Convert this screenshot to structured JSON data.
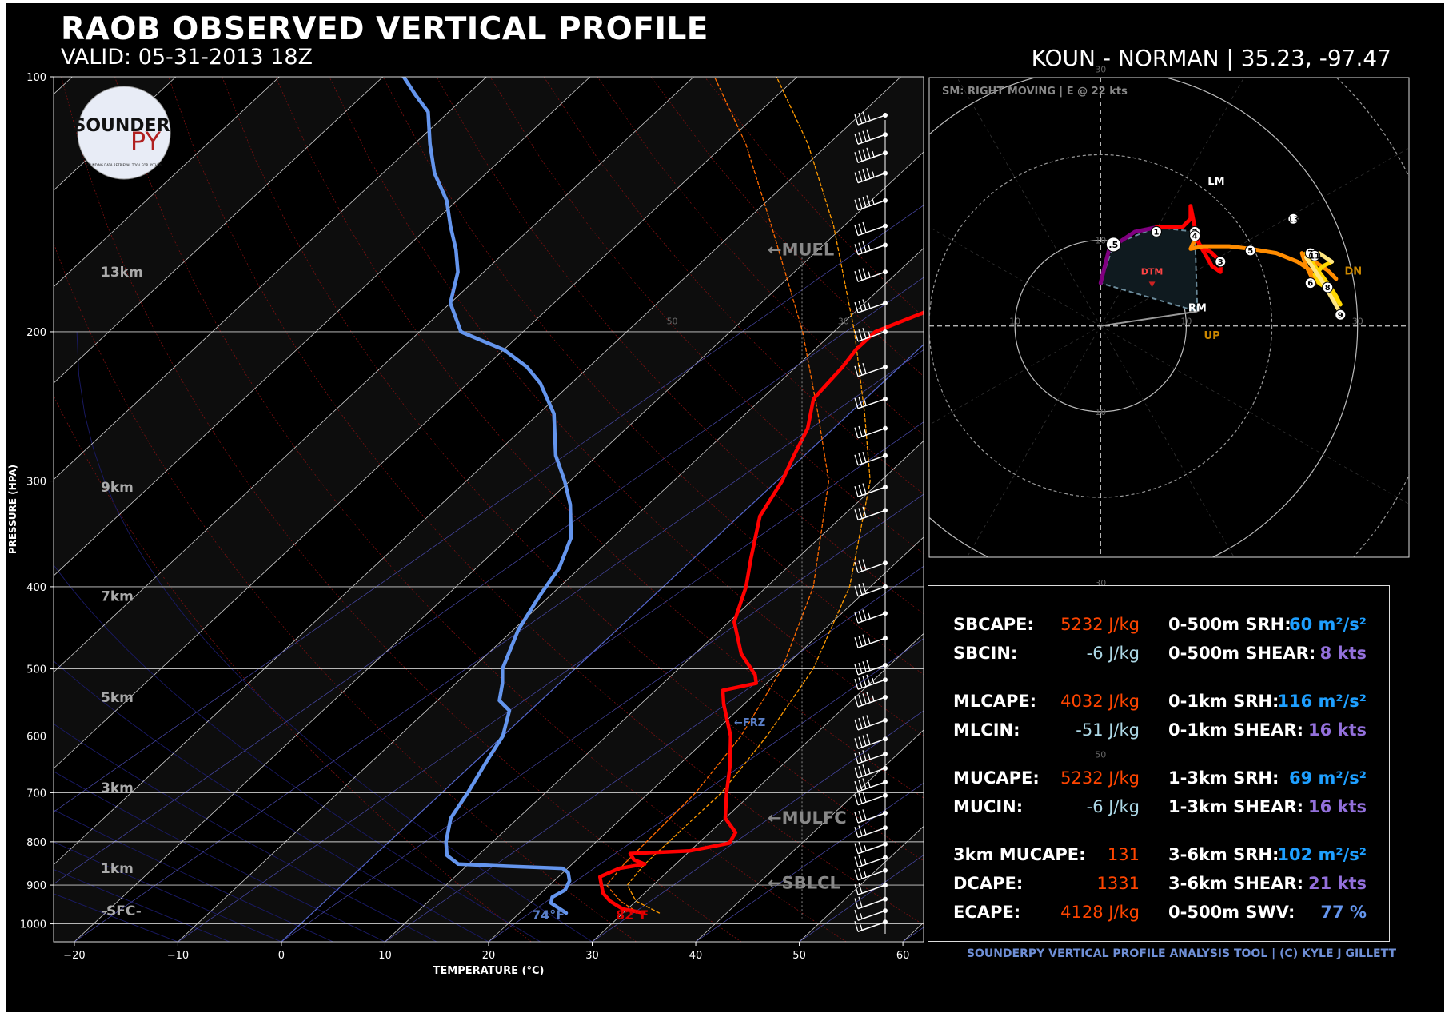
{
  "header": {
    "title": "RAOB OBSERVED VERTICAL PROFILE",
    "valid": "VALID: 05-31-2013 18Z",
    "station": "KOUN - NORMAN | 35.23, -97.47"
  },
  "footer": "SOUNDERPY VERTICAL PROFILE ANALYSIS TOOL | (C) KYLE J GILLETT",
  "logo": {
    "line1": "SOUNDER",
    "line2": "PY",
    "tagline": "SOUNDING DATA RETRIEVAL TOOL FOR PYTHON"
  },
  "colors": {
    "temperature": "#ff0000",
    "dewpoint": "#6495ed",
    "parcel": "#ff8c00",
    "background": "#000000"
  },
  "chart_data": [
    {
      "type": "line",
      "name": "skew-t",
      "xlabel": "TEMPERATURE (°C)",
      "ylabel": "PRESSURE (HPA)",
      "x_ticks": [
        -20,
        -10,
        0,
        10,
        20,
        30,
        40,
        50,
        60
      ],
      "y_ticks": [
        100,
        200,
        300,
        400,
        500,
        600,
        700,
        800,
        900,
        1000
      ],
      "xlim": [
        -22,
        62
      ],
      "ylim": [
        1050,
        100
      ],
      "y_scale": "log",
      "height_labels": [
        {
          "text": "13km",
          "p": 170
        },
        {
          "text": "9km",
          "p": 305
        },
        {
          "text": "7km",
          "p": 410
        },
        {
          "text": "5km",
          "p": 540
        },
        {
          "text": "3km",
          "p": 690
        },
        {
          "text": "1km",
          "p": 860
        },
        {
          "text": "-SFC-",
          "p": 965
        }
      ],
      "annotations": [
        {
          "text": "←MUEL",
          "p": 160
        },
        {
          "text": "←FRZ",
          "p": 575
        },
        {
          "text": "←MULFC",
          "p": 750
        },
        {
          "text": "←SBLCL",
          "p": 895
        }
      ],
      "surface_labels": {
        "dewpoint": "74°F",
        "temperature": "82°F"
      },
      "temperature": [
        [
          971,
          32.0
        ],
        [
          960,
          29.5
        ],
        [
          940,
          27.5
        ],
        [
          920,
          26.0
        ],
        [
          900,
          25.0
        ],
        [
          880,
          24.0
        ],
        [
          860,
          25.0
        ],
        [
          850,
          27.0
        ],
        [
          840,
          25.5
        ],
        [
          826,
          24.5
        ],
        [
          820,
          30.0
        ],
        [
          803,
          33.0
        ],
        [
          780,
          32.5
        ],
        [
          750,
          30.0
        ],
        [
          700,
          27.5
        ],
        [
          650,
          25.0
        ],
        [
          600,
          22.0
        ],
        [
          550,
          18.0
        ],
        [
          530,
          16.5
        ],
        [
          520,
          19.0
        ],
        [
          508,
          18.0
        ],
        [
          480,
          14.5
        ],
        [
          440,
          10.5
        ],
        [
          400,
          8.0
        ],
        [
          370,
          5.5
        ],
        [
          330,
          2.0
        ],
        [
          300,
          0.5
        ],
        [
          280,
          -1.0
        ],
        [
          260,
          -2.5
        ],
        [
          240,
          -5.0
        ],
        [
          220,
          -5.5
        ],
        [
          210,
          -6.0
        ],
        [
          200,
          -6.0
        ],
        [
          185,
          -2.0
        ],
        [
          170,
          2.0
        ],
        [
          160,
          3.5
        ],
        [
          152,
          4.5
        ],
        [
          145,
          5.0
        ],
        [
          140,
          8.0
        ],
        [
          132,
          9.5
        ],
        [
          124,
          12.0
        ],
        [
          115,
          14.5
        ],
        [
          107,
          16.5
        ],
        [
          100,
          18.5
        ],
        [
          96,
          20.5
        ]
      ],
      "dewpoint": [
        [
          971,
          24.5
        ],
        [
          945,
          22.0
        ],
        [
          930,
          21.5
        ],
        [
          912,
          22.0
        ],
        [
          890,
          21.5
        ],
        [
          870,
          20.5
        ],
        [
          860,
          19.5
        ],
        [
          855,
          14.0
        ],
        [
          850,
          9.0
        ],
        [
          830,
          7.0
        ],
        [
          800,
          5.5
        ],
        [
          750,
          3.5
        ],
        [
          700,
          2.5
        ],
        [
          640,
          1.0
        ],
        [
          600,
          0.0
        ],
        [
          560,
          -2.0
        ],
        [
          545,
          -4.0
        ],
        [
          520,
          -5.5
        ],
        [
          500,
          -7.0
        ],
        [
          450,
          -9.5
        ],
        [
          410,
          -11.0
        ],
        [
          380,
          -12.0
        ],
        [
          350,
          -14.0
        ],
        [
          320,
          -17.5
        ],
        [
          300,
          -20.5
        ],
        [
          280,
          -24.0
        ],
        [
          250,
          -28.5
        ],
        [
          230,
          -33.0
        ],
        [
          220,
          -36.0
        ],
        [
          210,
          -40.0
        ],
        [
          200,
          -46.0
        ],
        [
          185,
          -50.0
        ],
        [
          170,
          -52.5
        ],
        [
          160,
          -55.0
        ],
        [
          150,
          -58.0
        ],
        [
          140,
          -61.0
        ],
        [
          130,
          -65.0
        ],
        [
          120,
          -68.5
        ],
        [
          110,
          -72.0
        ],
        [
          105,
          -75.0
        ],
        [
          100,
          -78.0
        ],
        [
          97,
          -80.0
        ]
      ],
      "parcel_sb": [
        [
          971,
          33.5
        ],
        [
          940,
          30.0
        ],
        [
          900,
          27.5
        ],
        [
          850,
          27.0
        ],
        [
          700,
          27.0
        ],
        [
          600,
          25.5
        ],
        [
          500,
          23.0
        ],
        [
          400,
          18.0
        ],
        [
          300,
          9.0
        ],
        [
          250,
          1.5
        ],
        [
          200,
          -8.0
        ],
        [
          150,
          -21.0
        ],
        [
          120,
          -32.0
        ],
        [
          100,
          -42.0
        ]
      ],
      "parcel_ml": [
        [
          971,
          31.5
        ],
        [
          940,
          28.5
        ],
        [
          900,
          25.5
        ],
        [
          850,
          25.0
        ],
        [
          700,
          24.5
        ],
        [
          600,
          23.0
        ],
        [
          500,
          20.0
        ],
        [
          400,
          14.5
        ],
        [
          300,
          5.0
        ],
        [
          250,
          -3.0
        ],
        [
          200,
          -13.0
        ],
        [
          150,
          -27.0
        ],
        [
          120,
          -38.0
        ],
        [
          100,
          -48.0
        ]
      ],
      "wind_barbs": [
        {
          "p": 995,
          "spd": 15
        },
        {
          "p": 965,
          "spd": 15
        },
        {
          "p": 935,
          "spd": 20
        },
        {
          "p": 900,
          "spd": 20
        },
        {
          "p": 865,
          "spd": 25
        },
        {
          "p": 835,
          "spd": 25
        },
        {
          "p": 805,
          "spd": 25
        },
        {
          "p": 770,
          "spd": 25
        },
        {
          "p": 740,
          "spd": 30
        },
        {
          "p": 705,
          "spd": 30
        },
        {
          "p": 680,
          "spd": 35
        },
        {
          "p": 655,
          "spd": 35
        },
        {
          "p": 630,
          "spd": 35
        },
        {
          "p": 605,
          "spd": 40
        },
        {
          "p": 575,
          "spd": 40
        },
        {
          "p": 540,
          "spd": 45
        },
        {
          "p": 515,
          "spd": 45
        },
        {
          "p": 495,
          "spd": 40
        },
        {
          "p": 460,
          "spd": 35
        },
        {
          "p": 430,
          "spd": 35
        },
        {
          "p": 400,
          "spd": 30
        },
        {
          "p": 375,
          "spd": 30
        },
        {
          "p": 325,
          "spd": 30
        },
        {
          "p": 305,
          "spd": 30
        },
        {
          "p": 280,
          "spd": 30
        },
        {
          "p": 260,
          "spd": 25
        },
        {
          "p": 240,
          "spd": 25
        },
        {
          "p": 220,
          "spd": 30
        },
        {
          "p": 200,
          "spd": 35
        },
        {
          "p": 185,
          "spd": 35
        },
        {
          "p": 170,
          "spd": 35
        },
        {
          "p": 158,
          "spd": 35
        },
        {
          "p": 150,
          "spd": 30
        },
        {
          "p": 140,
          "spd": 45
        },
        {
          "p": 130,
          "spd": 45
        },
        {
          "p": 123,
          "spd": 45
        },
        {
          "p": 117,
          "spd": 40
        },
        {
          "p": 111,
          "spd": 35
        }
      ]
    },
    {
      "type": "line",
      "name": "hodograph",
      "label": "SM: RIGHT MOVING | E @ 22 kts",
      "ring_labels": [
        "10",
        "30",
        "50"
      ],
      "ring_values": [
        10,
        20,
        30,
        40,
        50
      ],
      "xlim": [
        -20,
        36
      ],
      "ylim": [
        -27,
        29
      ],
      "points": [
        {
          "label": ".5",
          "u": 1.5,
          "v": 9.5
        },
        {
          "label": "1",
          "u": 6.5,
          "v": 11.0
        },
        {
          "label": "2",
          "u": 11.0,
          "v": 11.0
        },
        {
          "label": "3",
          "u": 14.0,
          "v": 7.5
        },
        {
          "label": "4",
          "u": 11.0,
          "v": 10.5
        },
        {
          "label": "5",
          "u": 17.5,
          "v": 8.8
        },
        {
          "label": "6",
          "u": 24.5,
          "v": 5.0
        },
        {
          "label": "7",
          "u": 24.5,
          "v": 8.5
        },
        {
          "label": "8",
          "u": 26.5,
          "v": 4.5
        },
        {
          "label": "9",
          "u": 28.0,
          "v": 1.3
        },
        {
          "label": "11",
          "u": 25.0,
          "v": 8.2
        },
        {
          "label": "13",
          "u": 22.5,
          "v": 12.5
        }
      ],
      "segments": [
        {
          "color": "#800080",
          "uv": [
            [
              0,
              5
            ],
            [
              0.5,
              7
            ],
            [
              1,
              9
            ],
            [
              2.5,
              10
            ],
            [
              4,
              11
            ],
            [
              6.5,
              11.5
            ]
          ]
        },
        {
          "color": "#ff0000",
          "uv": [
            [
              6.5,
              11.5
            ],
            [
              9.5,
              11.5
            ],
            [
              10.5,
              12.5
            ],
            [
              10.5,
              14.0
            ],
            [
              11.0,
              11.5
            ],
            [
              11.5,
              9.5
            ],
            [
              13.0,
              8.5
            ],
            [
              14.0,
              7.5
            ],
            [
              14.0,
              6.3
            ],
            [
              13.0,
              7.0
            ],
            [
              11.0,
              10.5
            ],
            [
              10.7,
              11.2
            ],
            [
              11.2,
              10.5
            ]
          ]
        },
        {
          "color": "#ff8c00",
          "uv": [
            [
              11.2,
              10.5
            ],
            [
              10.5,
              9.0
            ],
            [
              12.0,
              9.3
            ],
            [
              15.0,
              9.3
            ],
            [
              17.5,
              9.0
            ],
            [
              20.5,
              8.5
            ],
            [
              23.0,
              7.5
            ],
            [
              24.5,
              6.5
            ],
            [
              25.0,
              5.0
            ],
            [
              24.0,
              7.0
            ],
            [
              23.5,
              8.5
            ],
            [
              25.0,
              7.5
            ],
            [
              26.5,
              6.5
            ],
            [
              27.5,
              5.5
            ]
          ]
        },
        {
          "color": "#ffd700",
          "uv": [
            [
              24.0,
              8.5
            ],
            [
              25.0,
              7.0
            ],
            [
              26.5,
              5.0
            ],
            [
              27.5,
              3.5
            ],
            [
              28.0,
              2.5
            ],
            [
              27.0,
              4.0
            ],
            [
              25.5,
              5.0
            ],
            [
              25.0,
              6.0
            ],
            [
              26.0,
              7.0
            ],
            [
              27.0,
              7.5
            ]
          ]
        },
        {
          "color": "#ffe680",
          "uv": [
            [
              28.0,
              1.5
            ],
            [
              26.0,
              5.0
            ],
            [
              24.0,
              8.0
            ],
            [
              25.5,
              8.5
            ],
            [
              27.0,
              7.5
            ]
          ]
        }
      ],
      "markers": [
        {
          "text": "LM",
          "u": 13.5,
          "v": 16.5,
          "color": "#ffffff"
        },
        {
          "text": "RM",
          "u": 11.3,
          "v": 1.7,
          "color": "#ffffff"
        },
        {
          "text": "DTM",
          "u": 6.0,
          "v": 6.0,
          "color": "#ff4444"
        },
        {
          "text": "DN",
          "u": 29.5,
          "v": 6.0,
          "color": "#cc8800"
        },
        {
          "text": "UP",
          "u": 13.0,
          "v": -1.5,
          "color": "#cc8800"
        }
      ]
    }
  ],
  "params": {
    "left": [
      {
        "label": "SBCAPE:",
        "value": "5232 J/kg",
        "color": "#ff4500"
      },
      {
        "label": "SBCIN:",
        "value": "-6 J/kg",
        "color": "#add8e6"
      },
      {
        "label": "MLCAPE:",
        "value": "4032 J/kg",
        "color": "#ff4500"
      },
      {
        "label": "MLCIN:",
        "value": "-51 J/kg",
        "color": "#add8e6"
      },
      {
        "label": "MUCAPE:",
        "value": "5232 J/kg",
        "color": "#ff4500"
      },
      {
        "label": "MUCIN:",
        "value": "-6 J/kg",
        "color": "#add8e6"
      },
      {
        "label": "3km MUCAPE:",
        "value": "131",
        "color": "#ff4500"
      },
      {
        "label": "DCAPE:",
        "value": "1331",
        "color": "#ff4500"
      },
      {
        "label": "ECAPE:",
        "value": "4128 J/kg",
        "color": "#ff4500"
      }
    ],
    "right": [
      {
        "label": "0-500m SRH:",
        "value": "60 m²/s²",
        "color": "#1e9fff"
      },
      {
        "label": "0-500m SHEAR:",
        "value": "8 kts",
        "color": "#9370db"
      },
      {
        "label": "0-1km SRH:",
        "value": "116 m²/s²",
        "color": "#1e9fff"
      },
      {
        "label": "0-1km SHEAR:",
        "value": "16 kts",
        "color": "#9370db"
      },
      {
        "label": "1-3km SRH:",
        "value": "69 m²/s²",
        "color": "#1e9fff"
      },
      {
        "label": "1-3km SHEAR:",
        "value": "16 kts",
        "color": "#9370db"
      },
      {
        "label": "3-6km SRH:",
        "value": "102 m²/s²",
        "color": "#1e9fff"
      },
      {
        "label": "3-6km SHEAR:",
        "value": "21 kts",
        "color": "#9370db"
      },
      {
        "label": "0-500m SWV:",
        "value": "77 %",
        "color": "#6495ed"
      }
    ]
  }
}
